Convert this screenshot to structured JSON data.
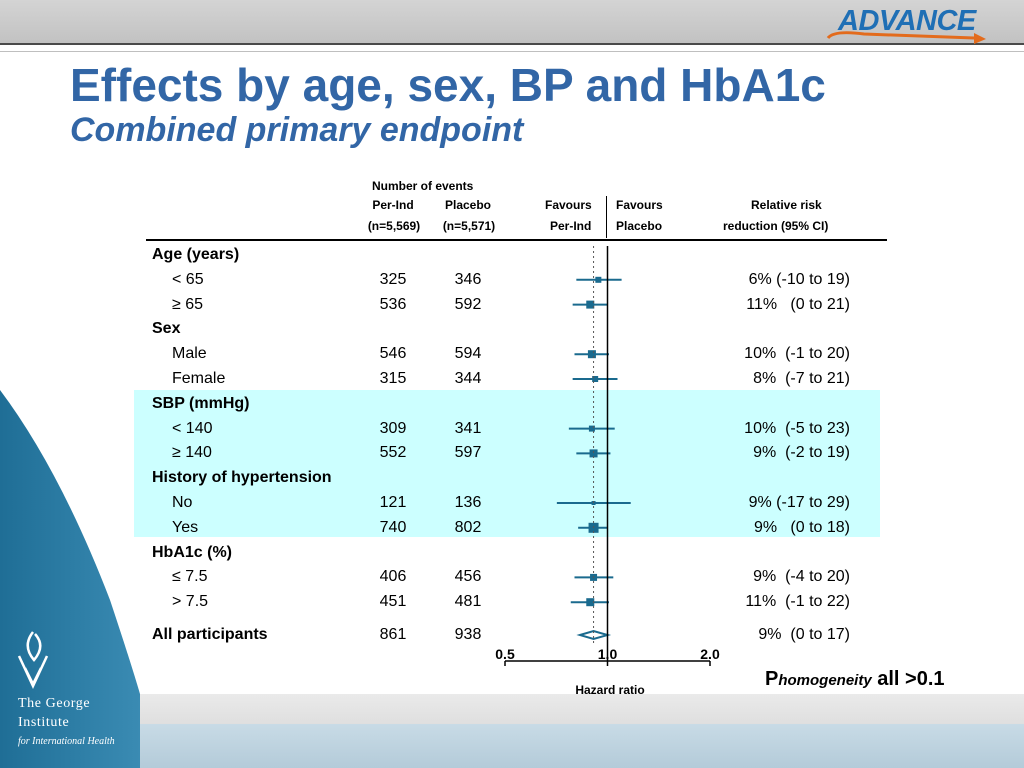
{
  "logo": {
    "text": "ADVANCE"
  },
  "title": "Effects by age, sex, BP and HbA1c",
  "subtitle": "Combined primary endpoint",
  "org": {
    "line1": "The George",
    "line2": "Institute",
    "line3": "for International Health"
  },
  "headers": {
    "number_of_events": "Number of events",
    "per_ind": "Per-Ind",
    "placebo": "Placebo",
    "n_per_ind": "(n=5,569)",
    "n_placebo": "(n=5,571)",
    "favours_left_1": "Favours",
    "favours_left_2": "Per-Ind",
    "favours_right_1": "Favours",
    "favours_right_2": "Placebo",
    "rrr_1": "Relative risk",
    "rrr_2": "reduction (95% CI)"
  },
  "p_homogeneity": {
    "p": "P",
    "sub": "homogeneity",
    "rest": " all >0.1"
  },
  "chart_data": {
    "type": "forest",
    "xlabel": "Hazard ratio",
    "x_scale": "log",
    "x_ticks": [
      0.5,
      1.0,
      2.0
    ],
    "x_tick_labels": [
      "0.5",
      "1.0",
      "2.0"
    ],
    "reference_line": 1.0,
    "overall_estimate_dashed_line": 0.91,
    "rows": [
      {
        "label": "Age (years)",
        "header": true
      },
      {
        "label": "< 65",
        "per_ind_events": "325",
        "placebo_events": "346",
        "hr": 0.94,
        "ci": [
          0.81,
          1.1
        ],
        "weight": 6,
        "rrr": "6% (-10 to 19)"
      },
      {
        "label": "≥ 65",
        "per_ind_events": "536",
        "placebo_events": "592",
        "hr": 0.89,
        "ci": [
          0.79,
          1.0
        ],
        "weight": 8,
        "rrr": "11%   (0 to 21)"
      },
      {
        "label": "Sex",
        "header": true
      },
      {
        "label": "Male",
        "per_ind_events": "546",
        "placebo_events": "594",
        "hr": 0.9,
        "ci": [
          0.8,
          1.01
        ],
        "weight": 8,
        "rrr": "10%  (-1 to 20)"
      },
      {
        "label": "Female",
        "per_ind_events": "315",
        "placebo_events": "344",
        "hr": 0.92,
        "ci": [
          0.79,
          1.07
        ],
        "weight": 6,
        "rrr": "8%  (-7 to 21)"
      },
      {
        "label": "SBP (mmHg)",
        "header": true
      },
      {
        "label": "< 140",
        "per_ind_events": "309",
        "placebo_events": "341",
        "hr": 0.9,
        "ci": [
          0.77,
          1.05
        ],
        "weight": 6,
        "rrr": "10%  (-5 to 23)"
      },
      {
        "label": "≥ 140",
        "per_ind_events": "552",
        "placebo_events": "597",
        "hr": 0.91,
        "ci": [
          0.81,
          1.02
        ],
        "weight": 8,
        "rrr": "9%  (-2 to 19)"
      },
      {
        "label": "History of hypertension",
        "header": true
      },
      {
        "label": "No",
        "per_ind_events": "121",
        "placebo_events": "136",
        "hr": 0.91,
        "ci": [
          0.71,
          1.17
        ],
        "weight": 4,
        "rrr": "9% (-17 to 29)"
      },
      {
        "label": "Yes",
        "per_ind_events": "740",
        "placebo_events": "802",
        "hr": 0.91,
        "ci": [
          0.82,
          1.0
        ],
        "weight": 10,
        "rrr": "9%   (0 to 18)"
      },
      {
        "label": "HbA1c (%)",
        "header": true
      },
      {
        "label": "≤ 7.5",
        "per_ind_events": "406",
        "placebo_events": "456",
        "hr": 0.91,
        "ci": [
          0.8,
          1.04
        ],
        "weight": 7,
        "rrr": "9%  (-4 to 20)"
      },
      {
        "label": "> 7.5",
        "per_ind_events": "451",
        "placebo_events": "481",
        "hr": 0.89,
        "ci": [
          0.78,
          1.01
        ],
        "weight": 8,
        "rrr": "11%  (-1 to 22)"
      },
      {
        "label": "All participants",
        "header": true,
        "overall": true,
        "per_ind_events": "861",
        "placebo_events": "938",
        "hr": 0.91,
        "ci": [
          0.83,
          1.0
        ],
        "rrr": "9%  (0 to 17)"
      }
    ]
  },
  "colors": {
    "title": "#3266a6",
    "marker": "#1a6a8e",
    "highlight": "#ccffff",
    "left_panel": "#2f7ea6"
  }
}
